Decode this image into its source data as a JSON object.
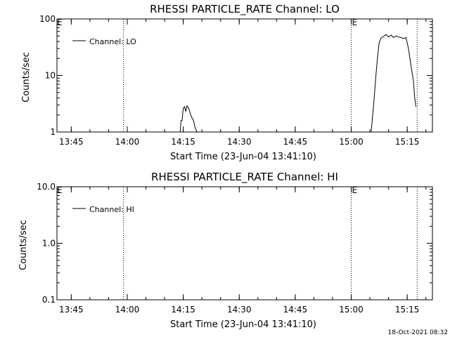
{
  "chart_data": [
    {
      "type": "line",
      "title": "RHESSI PARTICLE_RATE Channel: LO",
      "xlabel": "Start Time (23-Jun-04 13:41:10)",
      "ylabel": "Counts/sec",
      "yscale": "log",
      "ylim": [
        1,
        100
      ],
      "xlim": [
        "13:41:10",
        "15:21:45"
      ],
      "x_tick_labels": [
        "13:45",
        "14:00",
        "14:15",
        "14:30",
        "14:45",
        "15:00",
        "15:15"
      ],
      "y_tick_labels": [
        "1",
        "10",
        "100"
      ],
      "legend": {
        "entries": [
          "Channel: LO"
        ],
        "placement": "top-left"
      },
      "vertical_markers": [
        {
          "time": "13:59:00",
          "label": ""
        },
        {
          "time": "15:00:00",
          "label": "E"
        },
        {
          "time": "15:17:40",
          "label": ""
        }
      ],
      "corner_mark": "E",
      "series": [
        {
          "name": "Channel: LO",
          "segments": [
            {
              "x": [
                "14:14:10",
                "14:14:25",
                "14:14:40",
                "14:15:00",
                "14:15:20",
                "14:15:40",
                "14:16:00",
                "14:16:30",
                "14:17:00",
                "14:17:20",
                "14:17:45",
                "14:18:10",
                "14:18:40"
              ],
              "y": [
                1,
                1.6,
                1.6,
                2.6,
                2.8,
                2.3,
                2.9,
                2.6,
                2.0,
                1.8,
                1.6,
                1.2,
                1
              ]
            },
            {
              "x": [
                "15:05:20",
                "15:06:00",
                "15:06:30",
                "15:07:00",
                "15:07:30",
                "15:08:00",
                "15:08:40",
                "15:09:20",
                "15:10:00",
                "15:10:40",
                "15:11:20",
                "15:12:00",
                "15:12:40",
                "15:13:20",
                "15:14:00",
                "15:14:40",
                "15:15:20",
                "15:16:00",
                "15:16:40",
                "15:17:00",
                "15:17:20"
              ],
              "y": [
                1,
                3,
                8,
                20,
                38,
                46,
                49,
                53,
                48,
                52,
                47,
                50,
                48,
                47,
                45,
                47,
                30,
                15,
                8,
                4,
                2.8
              ]
            }
          ]
        }
      ]
    },
    {
      "type": "line",
      "title": "RHESSI PARTICLE_RATE Channel: HI",
      "xlabel": "Start Time (23-Jun-04 13:41:10)",
      "ylabel": "Counts/sec",
      "yscale": "log",
      "ylim": [
        0.1,
        10
      ],
      "xlim": [
        "13:41:10",
        "15:21:45"
      ],
      "x_tick_labels": [
        "13:45",
        "14:00",
        "14:15",
        "14:30",
        "14:45",
        "15:00",
        "15:15"
      ],
      "y_tick_labels": [
        "0.1",
        "1.0",
        "10.0"
      ],
      "legend": {
        "entries": [
          "Channel: HI"
        ],
        "placement": "top-left"
      },
      "vertical_markers": [
        {
          "time": "13:59:00",
          "label": ""
        },
        {
          "time": "15:00:00",
          "label": "E"
        },
        {
          "time": "15:17:40",
          "label": ""
        }
      ],
      "corner_mark": "E",
      "series": [
        {
          "name": "Channel: HI",
          "segments": []
        }
      ]
    }
  ],
  "footer": {
    "timestamp": "18-Oct-2021 08:32"
  }
}
